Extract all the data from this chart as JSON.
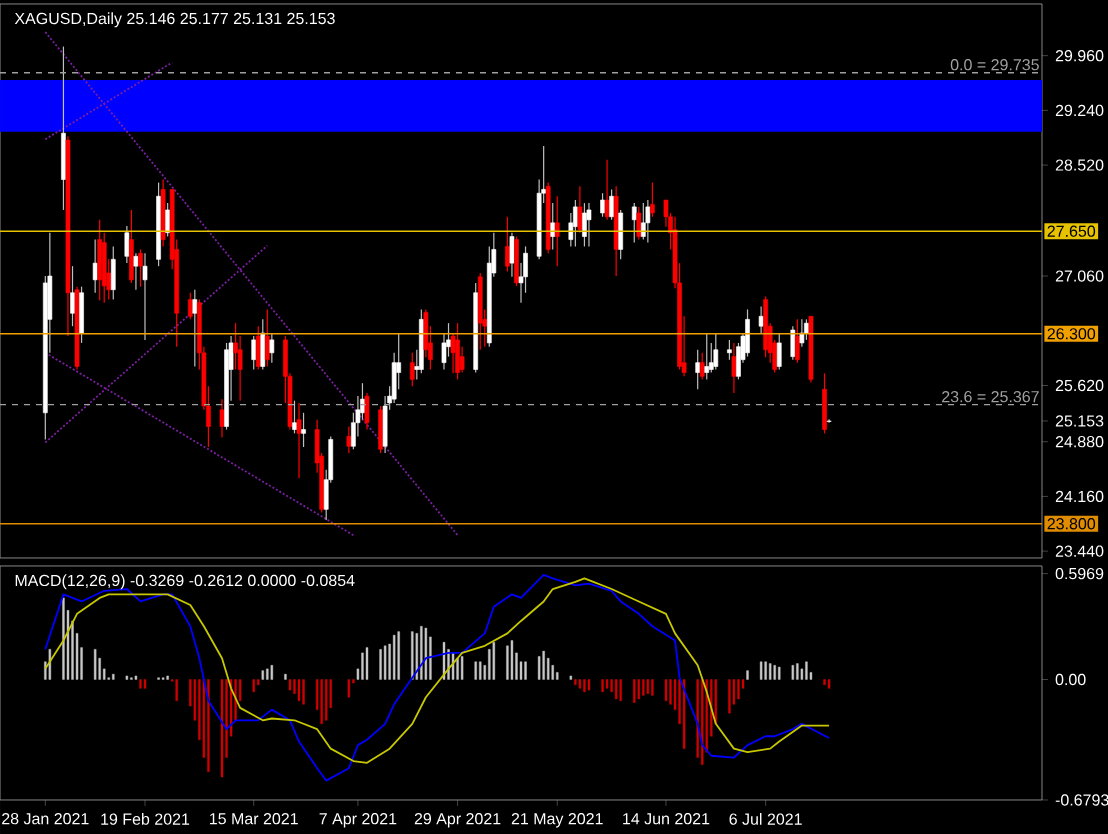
{
  "chart_data": [
    {
      "type": "candlestick",
      "title": "XAGUSD,Daily  25.146 25.177 25.131 25.153",
      "x": [
        "2021-01-28",
        "2021-01-29",
        "2021-02-01",
        "2021-02-02",
        "2021-02-03",
        "2021-02-04",
        "2021-02-05",
        "2021-02-08",
        "2021-02-09",
        "2021-02-10",
        "2021-02-11",
        "2021-02-12",
        "2021-02-15",
        "2021-02-16",
        "2021-02-17",
        "2021-02-18",
        "2021-02-19",
        "2021-02-22",
        "2021-02-23",
        "2021-02-24",
        "2021-02-25",
        "2021-02-26",
        "2021-03-01",
        "2021-03-02",
        "2021-03-03",
        "2021-03-04",
        "2021-03-05",
        "2021-03-08",
        "2021-03-09",
        "2021-03-10",
        "2021-03-11",
        "2021-03-12",
        "2021-03-15",
        "2021-03-16",
        "2021-03-17",
        "2021-03-18",
        "2021-03-19",
        "2021-03-22",
        "2021-03-23",
        "2021-03-24",
        "2021-03-25",
        "2021-03-26",
        "2021-03-29",
        "2021-03-30",
        "2021-03-31",
        "2021-04-01",
        "2021-04-05",
        "2021-04-06",
        "2021-04-07",
        "2021-04-08",
        "2021-04-09",
        "2021-04-12",
        "2021-04-13",
        "2021-04-14",
        "2021-04-15",
        "2021-04-16",
        "2021-04-19",
        "2021-04-20",
        "2021-04-21",
        "2021-04-22",
        "2021-04-23",
        "2021-04-26",
        "2021-04-27",
        "2021-04-28",
        "2021-04-29",
        "2021-04-30",
        "2021-05-03",
        "2021-05-04",
        "2021-05-05",
        "2021-05-06",
        "2021-05-07",
        "2021-05-10",
        "2021-05-11",
        "2021-05-12",
        "2021-05-13",
        "2021-05-14",
        "2021-05-17",
        "2021-05-18",
        "2021-05-19",
        "2021-05-20",
        "2021-05-21",
        "2021-05-24",
        "2021-05-25",
        "2021-05-26",
        "2021-05-27",
        "2021-05-28",
        "2021-05-31",
        "2021-06-01",
        "2021-06-02",
        "2021-06-03",
        "2021-06-04",
        "2021-06-07",
        "2021-06-08",
        "2021-06-09",
        "2021-06-10",
        "2021-06-11",
        "2021-06-14",
        "2021-06-15",
        "2021-06-16",
        "2021-06-17",
        "2021-06-18",
        "2021-06-21",
        "2021-06-22",
        "2021-06-23",
        "2021-06-24",
        "2021-06-25",
        "2021-06-28",
        "2021-06-29",
        "2021-06-30",
        "2021-07-01",
        "2021-07-02",
        "2021-07-05",
        "2021-07-06",
        "2021-07-07",
        "2021-07-08",
        "2021-07-09",
        "2021-07-12",
        "2021-07-13",
        "2021-07-14",
        "2021-07-15",
        "2021-07-16",
        "2021-07-19",
        "2021-07-20"
      ],
      "ohlc": [
        [
          25.26,
          27.06,
          24.91,
          26.97
        ],
        [
          26.49,
          27.63,
          26.05,
          27.06
        ],
        [
          28.33,
          30.08,
          27.93,
          28.94
        ],
        [
          28.85,
          28.9,
          26.27,
          26.84
        ],
        [
          26.57,
          27.19,
          26.4,
          26.84
        ],
        [
          26.88,
          26.92,
          25.83,
          25.87
        ],
        [
          26.31,
          26.92,
          26.18,
          26.84
        ],
        [
          27.01,
          27.54,
          26.84,
          27.23
        ],
        [
          27.54,
          27.8,
          26.74,
          27.01
        ],
        [
          27.5,
          27.63,
          26.71,
          26.93
        ],
        [
          27.1,
          27.28,
          26.75,
          26.88
        ],
        [
          26.88,
          27.45,
          26.75,
          27.28
        ],
        [
          27.32,
          27.72,
          27.23,
          27.63
        ],
        [
          27.54,
          27.93,
          26.97,
          27.01
        ],
        [
          27.19,
          27.36,
          26.88,
          27.32
        ],
        [
          27.36,
          27.41,
          26.92,
          27.19
        ],
        [
          27.01,
          27.36,
          26.22,
          27.19
        ],
        [
          27.28,
          28.29,
          27.19,
          28.11
        ],
        [
          28.2,
          28.33,
          27.45,
          27.54
        ],
        [
          27.63,
          28.02,
          27.58,
          27.93
        ],
        [
          28.2,
          28.2,
          27.15,
          27.28
        ],
        [
          27.41,
          27.54,
          26.13,
          26.57
        ],
        [
          26.75,
          26.84,
          26.49,
          26.53
        ],
        [
          26.57,
          26.88,
          25.87,
          26.75
        ],
        [
          26.71,
          26.75,
          25.83,
          26.05
        ],
        [
          26.05,
          26.13,
          25.3,
          25.35
        ],
        [
          25.35,
          25.61,
          24.81,
          25.08
        ],
        [
          25.3,
          25.44,
          24.94,
          25.08
        ],
        [
          25.08,
          26.18,
          25.04,
          26.09
        ],
        [
          25.83,
          26.27,
          25.42,
          26.18
        ],
        [
          26.18,
          26.44,
          25.83,
          26.05
        ],
        [
          26.09,
          26.27,
          25.42,
          25.83
        ],
        [
          25.96,
          26.27,
          25.83,
          26.22
        ],
        [
          26.27,
          26.4,
          25.83,
          25.87
        ],
        [
          25.87,
          26.49,
          25.83,
          26.31
        ],
        [
          26.27,
          26.62,
          25.87,
          25.96
        ],
        [
          26.05,
          26.31,
          25.92,
          26.22
        ],
        [
          26.22,
          26.27,
          25.39,
          25.74
        ],
        [
          25.74,
          25.78,
          25.04,
          25.08
        ],
        [
          25.04,
          25.42,
          24.99,
          25.13
        ],
        [
          25.17,
          25.39,
          24.4,
          24.99
        ],
        [
          24.99,
          25.26,
          24.81,
          25.04
        ],
        [
          25.04,
          25.17,
          24.47,
          24.6
        ],
        [
          24.69,
          24.73,
          23.95,
          23.99
        ],
        [
          23.99,
          24.51,
          23.85,
          24.38
        ],
        [
          24.38,
          24.95,
          24.34,
          24.91
        ],
        [
          24.95,
          25.08,
          24.73,
          24.82
        ],
        [
          24.82,
          25.26,
          24.78,
          25.13
        ],
        [
          25.13,
          25.48,
          24.95,
          25.3
        ],
        [
          25.26,
          25.65,
          25.17,
          25.44
        ],
        [
          25.48,
          25.52,
          25.04,
          25.13
        ],
        [
          25.3,
          25.35,
          24.73,
          24.78
        ],
        [
          24.82,
          25.48,
          24.73,
          25.35
        ],
        [
          25.39,
          25.61,
          25.3,
          25.48
        ],
        [
          25.44,
          26.05,
          25.39,
          25.92
        ],
        [
          25.79,
          26.31,
          25.57,
          25.92
        ],
        [
          25.92,
          26.05,
          25.61,
          25.7
        ],
        [
          25.83,
          26.09,
          25.7,
          25.87
        ],
        [
          25.83,
          26.62,
          25.78,
          26.49
        ],
        [
          26.58,
          26.62,
          25.99,
          26.09
        ],
        [
          26.18,
          26.4,
          25.83,
          25.96
        ],
        [
          25.92,
          26.31,
          25.83,
          26.18
        ],
        [
          26.13,
          26.44,
          26.0,
          26.22
        ],
        [
          26.27,
          26.31,
          25.78,
          26.05
        ],
        [
          26.22,
          26.44,
          25.7,
          25.79
        ],
        [
          26.0,
          26.13,
          25.79,
          25.83
        ],
        [
          25.83,
          26.97,
          25.79,
          26.84
        ],
        [
          27.05,
          27.1,
          26.09,
          26.44
        ],
        [
          26.49,
          26.62,
          26.13,
          26.4
        ],
        [
          26.18,
          27.45,
          26.13,
          27.23
        ],
        [
          27.1,
          27.63,
          27.05,
          27.41
        ],
        [
          27.45,
          27.84,
          27.12,
          27.19
        ],
        [
          27.23,
          27.63,
          27.05,
          27.58
        ],
        [
          27.54,
          27.58,
          26.93,
          26.97
        ],
        [
          26.97,
          27.23,
          26.71,
          27.05
        ],
        [
          27.05,
          27.45,
          26.84,
          27.36
        ],
        [
          27.32,
          28.33,
          27.28,
          28.15
        ],
        [
          28.15,
          28.77,
          28.02,
          28.2
        ],
        [
          28.24,
          28.29,
          27.36,
          27.41
        ],
        [
          27.58,
          28.02,
          27.41,
          27.76
        ],
        [
          27.76,
          28.11,
          27.19,
          27.58
        ],
        [
          27.54,
          27.89,
          27.45,
          27.76
        ],
        [
          27.71,
          28.06,
          27.45,
          27.97
        ],
        [
          27.97,
          28.24,
          27.63,
          27.67
        ],
        [
          27.58,
          28.02,
          27.45,
          27.89
        ],
        [
          27.8,
          28.02,
          27.45,
          27.93
        ],
        [
          27.89,
          28.15,
          27.84,
          28.06
        ],
        [
          28.06,
          28.59,
          27.8,
          27.84
        ],
        [
          27.84,
          28.2,
          27.8,
          28.11
        ],
        [
          28.11,
          28.24,
          27.06,
          27.41
        ],
        [
          27.41,
          27.93,
          27.28,
          27.89
        ],
        [
          27.8,
          28.02,
          27.5,
          27.97
        ],
        [
          27.89,
          27.97,
          27.54,
          27.58
        ],
        [
          27.58,
          28.02,
          27.54,
          27.76
        ],
        [
          27.76,
          28.06,
          27.5,
          27.97
        ],
        [
          28.0,
          28.29,
          27.84,
          27.89
        ],
        [
          28.06,
          28.06,
          27.71,
          27.84
        ],
        [
          27.84,
          27.89,
          27.41,
          27.63
        ],
        [
          27.67,
          27.84,
          26.9,
          26.97
        ],
        [
          26.97,
          27.23,
          25.83,
          25.87
        ],
        [
          25.92,
          26.53,
          25.74,
          25.79
        ],
        [
          25.79,
          26.09,
          25.57,
          25.92
        ],
        [
          25.92,
          26.05,
          25.7,
          25.74
        ],
        [
          25.79,
          26.31,
          25.7,
          25.87
        ],
        [
          25.83,
          26.18,
          25.79,
          25.92
        ],
        [
          25.87,
          26.31,
          25.83,
          26.09
        ],
        [
          26.05,
          26.22,
          25.96,
          26.09
        ],
        [
          26.0,
          26.18,
          25.52,
          25.74
        ],
        [
          25.74,
          26.18,
          25.7,
          26.13
        ],
        [
          25.96,
          26.31,
          25.92,
          26.27
        ],
        [
          26.05,
          26.62,
          26.0,
          26.49
        ],
        [
          26.4,
          26.66,
          26.31,
          26.53
        ],
        [
          26.75,
          26.79,
          25.99,
          26.09
        ],
        [
          26.4,
          26.44,
          25.92,
          26.05
        ],
        [
          26.18,
          26.22,
          25.79,
          25.83
        ],
        [
          25.87,
          26.31,
          25.83,
          26.18
        ],
        [
          26.0,
          26.4,
          25.96,
          26.35
        ],
        [
          26.27,
          26.49,
          25.92,
          25.96
        ],
        [
          26.18,
          26.49,
          26.13,
          26.31
        ],
        [
          26.31,
          26.49,
          26.22,
          26.44
        ],
        [
          26.53,
          26.53,
          25.66,
          25.7
        ],
        [
          25.57,
          25.78,
          24.99,
          25.04
        ],
        [
          25.146,
          25.177,
          25.131,
          25.153
        ]
      ],
      "xlim": [
        "2021-01-18",
        "2021-09-05"
      ],
      "ylim": [
        23.35,
        30.64
      ],
      "yticks": [
        {
          "value": 29.96,
          "label": "29.960"
        },
        {
          "value": 29.24,
          "label": "29.240"
        },
        {
          "value": 28.52,
          "label": "28.520"
        },
        {
          "value": 27.06,
          "label": "27.060"
        },
        {
          "value": 25.62,
          "label": "25.620"
        },
        {
          "value": 25.153,
          "label": "25.153"
        },
        {
          "value": 24.88,
          "label": "24.880"
        },
        {
          "value": 24.16,
          "label": "24.160"
        },
        {
          "value": 23.44,
          "label": "23.440"
        }
      ],
      "tick_labels": "y",
      "bands": [
        {
          "axis": "y",
          "from": 28.96,
          "to": 29.64,
          "color": "#0000ff"
        }
      ],
      "ref_lines": [
        {
          "axis": "y",
          "value": 29.735,
          "label": "0.0 = 29.735",
          "color": "#a0a0a0",
          "line_style": "dashed"
        },
        {
          "axis": "y",
          "value": 25.367,
          "label": "23.6 = 25.367",
          "color": "#a0a0a0",
          "line_style": "dashed"
        },
        {
          "axis": "y",
          "value": 27.65,
          "label": "27.650",
          "color": "#e6c200",
          "line_style": "solid"
        },
        {
          "axis": "y",
          "value": 26.3,
          "label": "26.300",
          "color": "#f0a000",
          "line_style": "solid"
        },
        {
          "axis": "y",
          "value": 23.8,
          "label": "23.800",
          "color": "#e08c00",
          "line_style": "solid"
        }
      ],
      "series": [
        {
          "type": "line",
          "color": "#7b1fa2",
          "line_style": "dotted",
          "x": [
            "2021-01-28",
            "2021-04-29"
          ],
          "values": [
            30.27,
            23.65
          ]
        },
        {
          "type": "line",
          "color": "#7b1fa2",
          "line_style": "dotted",
          "x": [
            "2021-01-28",
            "2021-04-06"
          ],
          "values": [
            26.05,
            23.65
          ]
        },
        {
          "type": "line",
          "color": "#7b1fa2",
          "line_style": "dotted",
          "x": [
            "2021-01-28",
            "2021-03-18"
          ],
          "values": [
            24.87,
            27.46
          ]
        },
        {
          "type": "line",
          "color": "#7b1fa2",
          "line_style": "dotted",
          "x": [
            "2021-01-28",
            "2021-02-25"
          ],
          "values": [
            28.86,
            29.87
          ]
        }
      ]
    },
    {
      "type": "bar",
      "title": "MACD(12,26,9) -0.3269 -0.2612 0.0000 -0.0854",
      "x": [
        "2021-01-28",
        "2021-01-29",
        "2021-02-01",
        "2021-02-02",
        "2021-02-03",
        "2021-02-04",
        "2021-02-05",
        "2021-02-08",
        "2021-02-09",
        "2021-02-10",
        "2021-02-11",
        "2021-02-12",
        "2021-02-15",
        "2021-02-16",
        "2021-02-17",
        "2021-02-18",
        "2021-02-19",
        "2021-02-22",
        "2021-02-23",
        "2021-02-24",
        "2021-02-25",
        "2021-02-26",
        "2021-03-01",
        "2021-03-02",
        "2021-03-03",
        "2021-03-04",
        "2021-03-05",
        "2021-03-08",
        "2021-03-09",
        "2021-03-10",
        "2021-03-11",
        "2021-03-12",
        "2021-03-15",
        "2021-03-16",
        "2021-03-17",
        "2021-03-18",
        "2021-03-19",
        "2021-03-22",
        "2021-03-23",
        "2021-03-24",
        "2021-03-25",
        "2021-03-26",
        "2021-03-29",
        "2021-03-30",
        "2021-03-31",
        "2021-04-01",
        "2021-04-05",
        "2021-04-06",
        "2021-04-07",
        "2021-04-08",
        "2021-04-09",
        "2021-04-12",
        "2021-04-13",
        "2021-04-14",
        "2021-04-15",
        "2021-04-16",
        "2021-04-19",
        "2021-04-20",
        "2021-04-21",
        "2021-04-22",
        "2021-04-23",
        "2021-04-26",
        "2021-04-27",
        "2021-04-28",
        "2021-04-29",
        "2021-04-30",
        "2021-05-03",
        "2021-05-04",
        "2021-05-05",
        "2021-05-06",
        "2021-05-07",
        "2021-05-10",
        "2021-05-11",
        "2021-05-12",
        "2021-05-13",
        "2021-05-14",
        "2021-05-17",
        "2021-05-18",
        "2021-05-19",
        "2021-05-20",
        "2021-05-21",
        "2021-05-24",
        "2021-05-25",
        "2021-05-26",
        "2021-05-27",
        "2021-05-28",
        "2021-05-31",
        "2021-06-01",
        "2021-06-02",
        "2021-06-03",
        "2021-06-04",
        "2021-06-07",
        "2021-06-08",
        "2021-06-09",
        "2021-06-10",
        "2021-06-11",
        "2021-06-14",
        "2021-06-15",
        "2021-06-16",
        "2021-06-17",
        "2021-06-18",
        "2021-06-21",
        "2021-06-22",
        "2021-06-23",
        "2021-06-24",
        "2021-06-25",
        "2021-06-28",
        "2021-06-29",
        "2021-06-30",
        "2021-07-01",
        "2021-07-02",
        "2021-07-05",
        "2021-07-06",
        "2021-07-07",
        "2021-07-08",
        "2021-07-09",
        "2021-07-12",
        "2021-07-13",
        "2021-07-14",
        "2021-07-15",
        "2021-07-16",
        "2021-07-19",
        "2021-07-20"
      ],
      "xlim": [
        "2021-01-18",
        "2021-09-05"
      ],
      "ylim": [
        -0.6793,
        0.64
      ],
      "xticks": [
        {
          "value": "2021-01-28",
          "label": "28 Jan 2021"
        },
        {
          "value": "2021-02-19",
          "label": "19 Feb 2021"
        },
        {
          "value": "2021-03-15",
          "label": "15 Mar 2021"
        },
        {
          "value": "2021-04-07",
          "label": "7 Apr 2021"
        },
        {
          "value": "2021-04-29",
          "label": "29 Apr 2021"
        },
        {
          "value": "2021-05-21",
          "label": "21 May 2021"
        },
        {
          "value": "2021-06-14",
          "label": "14 Jun 2021"
        },
        {
          "value": "2021-07-06",
          "label": "6 Jul 2021"
        }
      ],
      "yticks": [
        0.5969,
        {
          "value": 0,
          "label": "0.00"
        },
        -0.6793
      ],
      "series": [
        {
          "type": "bar",
          "values": [
            0.1,
            0.17,
            0.46,
            0.39,
            0.33,
            0.26,
            0.18,
            0.17,
            0.12,
            0.06,
            0.01,
            0.03,
            0.02,
            0.01,
            0.02,
            -0.05,
            -0.05,
            0.01,
            0.01,
            0.02,
            -0.01,
            -0.12,
            -0.15,
            -0.23,
            -0.34,
            -0.44,
            -0.52,
            -0.55,
            -0.44,
            -0.32,
            -0.23,
            -0.12,
            -0.07,
            -0.03,
            0.05,
            0.06,
            0.08,
            0.03,
            -0.06,
            -0.08,
            -0.12,
            -0.14,
            -0.17,
            -0.25,
            -0.23,
            -0.16,
            -0.1,
            -0.02,
            0.06,
            0.15,
            0.18,
            0.17,
            0.19,
            0.2,
            0.25,
            0.27,
            0.27,
            0.26,
            0.3,
            0.29,
            0.24,
            0.21,
            0.17,
            0.15,
            0.12,
            0.13,
            0.1,
            0.1,
            0.08,
            0.17,
            0.21,
            0.19,
            0.22,
            0.15,
            0.1,
            0.1,
            0.13,
            0.16,
            0.12,
            0.08,
            0.04,
            0.02,
            -0.03,
            -0.05,
            -0.07,
            -0.06,
            -0.07,
            -0.05,
            -0.07,
            -0.11,
            -0.12,
            -0.13,
            -0.11,
            -0.09,
            -0.08,
            -0.09,
            -0.12,
            -0.14,
            -0.17,
            -0.25,
            -0.39,
            -0.44,
            -0.48,
            -0.41,
            -0.32,
            -0.25,
            -0.19,
            -0.14,
            -0.11,
            -0.05,
            0.05,
            0.1,
            0.1,
            0.09,
            0.08,
            0.07,
            0.08,
            0.09,
            0.06,
            0.1,
            0.04,
            -0.03,
            -0.05
          ],
          "colors": [
            "#c8c8c8",
            "#c8c8c8",
            "#c8c8c8",
            "#c8c8c8",
            "#c8c8c8",
            "#c8c8c8",
            "#c8c8c8",
            "#c8c8c8",
            "#c8c8c8",
            "#c8c8c8",
            "#c8c8c8",
            "#c8c8c8",
            "#c8c8c8",
            "#c8c8c8",
            "#c8c8c8",
            "#d00000",
            "#d00000",
            "#c8c8c8",
            "#c8c8c8",
            "#c8c8c8",
            "#d00000",
            "#d00000",
            "#d00000",
            "#d00000",
            "#d00000",
            "#d00000",
            "#d00000",
            "#d00000",
            "#d00000",
            "#d00000",
            "#d00000",
            "#d00000",
            "#d00000",
            "#d00000",
            "#c8c8c8",
            "#c8c8c8",
            "#c8c8c8",
            "#c8c8c8",
            "#d00000",
            "#d00000",
            "#d00000",
            "#d00000",
            "#d00000",
            "#d00000",
            "#d00000",
            "#d00000",
            "#d00000",
            "#d00000",
            "#c8c8c8",
            "#c8c8c8",
            "#c8c8c8",
            "#c8c8c8",
            "#c8c8c8",
            "#c8c8c8",
            "#c8c8c8",
            "#c8c8c8",
            "#c8c8c8",
            "#c8c8c8",
            "#c8c8c8",
            "#c8c8c8",
            "#c8c8c8",
            "#c8c8c8",
            "#c8c8c8",
            "#c8c8c8",
            "#c8c8c8",
            "#c8c8c8",
            "#c8c8c8",
            "#c8c8c8",
            "#c8c8c8",
            "#c8c8c8",
            "#c8c8c8",
            "#c8c8c8",
            "#c8c8c8",
            "#c8c8c8",
            "#c8c8c8",
            "#c8c8c8",
            "#c8c8c8",
            "#c8c8c8",
            "#c8c8c8",
            "#c8c8c8",
            "#c8c8c8",
            "#c8c8c8",
            "#d00000",
            "#d00000",
            "#d00000",
            "#d00000",
            "#d00000",
            "#d00000",
            "#d00000",
            "#d00000",
            "#d00000",
            "#d00000",
            "#d00000",
            "#d00000",
            "#d00000",
            "#d00000",
            "#d00000",
            "#d00000",
            "#d00000",
            "#d00000",
            "#d00000",
            "#d00000",
            "#d00000",
            "#d00000",
            "#d00000",
            "#d00000",
            "#d00000",
            "#d00000",
            "#d00000",
            "#d00000",
            "#c8c8c8",
            "#c8c8c8",
            "#c8c8c8",
            "#c8c8c8",
            "#c8c8c8",
            "#c8c8c8",
            "#c8c8c8",
            "#c8c8c8",
            "#c8c8c8",
            "#c8c8c8",
            "#c8c8c8",
            "#d00000",
            "#d00000"
          ]
        },
        {
          "type": "line",
          "color": "#0000ff",
          "x": [
            "2021-01-28",
            "2021-02-01",
            "2021-02-03",
            "2021-02-05",
            "2021-02-10",
            "2021-02-15",
            "2021-02-18",
            "2021-02-23",
            "2021-02-25",
            "2021-03-01",
            "2021-03-03",
            "2021-03-05",
            "2021-03-09",
            "2021-03-11",
            "2021-03-16",
            "2021-03-19",
            "2021-03-23",
            "2021-03-25",
            "2021-03-29",
            "2021-03-31",
            "2021-04-05",
            "2021-04-07",
            "2021-04-09",
            "2021-04-13",
            "2021-04-15",
            "2021-04-19",
            "2021-04-22",
            "2021-04-27",
            "2021-04-30",
            "2021-05-05",
            "2021-05-07",
            "2021-05-11",
            "2021-05-13",
            "2021-05-18",
            "2021-05-20",
            "2021-05-25",
            "2021-05-28",
            "2021-06-02",
            "2021-06-04",
            "2021-06-08",
            "2021-06-11",
            "2021-06-16",
            "2021-06-17",
            "2021-06-21",
            "2021-06-22",
            "2021-06-24",
            "2021-06-29",
            "2021-07-02",
            "2021-07-06",
            "2021-07-08",
            "2021-07-12",
            "2021-07-14",
            "2021-07-20"
          ],
          "values": [
            0.17,
            0.48,
            0.46,
            0.44,
            0.5,
            0.51,
            0.44,
            0.48,
            0.48,
            0.3,
            0.12,
            -0.12,
            -0.28,
            -0.23,
            -0.23,
            -0.17,
            -0.23,
            -0.35,
            -0.5,
            -0.57,
            -0.5,
            -0.37,
            -0.34,
            -0.25,
            -0.14,
            0.01,
            0.12,
            0.15,
            0.15,
            0.26,
            0.41,
            0.48,
            0.46,
            0.59,
            0.57,
            0.53,
            0.54,
            0.5,
            0.44,
            0.37,
            0.3,
            0.22,
            0.01,
            -0.25,
            -0.37,
            -0.43,
            -0.44,
            -0.37,
            -0.32,
            -0.32,
            -0.28,
            -0.25,
            -0.33
          ]
        },
        {
          "type": "line",
          "color": "#c8c800",
          "x": [
            "2021-01-28",
            "2021-02-01",
            "2021-02-04",
            "2021-02-09",
            "2021-02-11",
            "2021-02-24",
            "2021-03-01",
            "2021-03-04",
            "2021-03-08",
            "2021-03-10",
            "2021-03-12",
            "2021-03-17",
            "2021-03-19",
            "2021-03-24",
            "2021-03-29",
            "2021-04-01",
            "2021-04-06",
            "2021-04-09",
            "2021-04-14",
            "2021-04-19",
            "2021-04-22",
            "2021-04-27",
            "2021-04-30",
            "2021-05-05",
            "2021-05-10",
            "2021-05-13",
            "2021-05-18",
            "2021-05-20",
            "2021-05-25",
            "2021-05-27",
            "2021-06-02",
            "2021-06-08",
            "2021-06-14",
            "2021-06-16",
            "2021-06-21",
            "2021-06-23",
            "2021-06-25",
            "2021-06-29",
            "2021-07-02",
            "2021-07-07",
            "2021-07-09",
            "2021-07-14",
            "2021-07-20"
          ],
          "values": [
            0.06,
            0.22,
            0.37,
            0.46,
            0.48,
            0.48,
            0.42,
            0.3,
            0.12,
            -0.05,
            -0.16,
            -0.23,
            -0.22,
            -0.23,
            -0.28,
            -0.39,
            -0.46,
            -0.47,
            -0.39,
            -0.25,
            -0.1,
            0.06,
            0.15,
            0.19,
            0.26,
            0.33,
            0.44,
            0.51,
            0.55,
            0.57,
            0.51,
            0.44,
            0.37,
            0.26,
            0.08,
            -0.07,
            -0.25,
            -0.39,
            -0.41,
            -0.39,
            -0.35,
            -0.26,
            -0.26
          ]
        }
      ]
    }
  ]
}
